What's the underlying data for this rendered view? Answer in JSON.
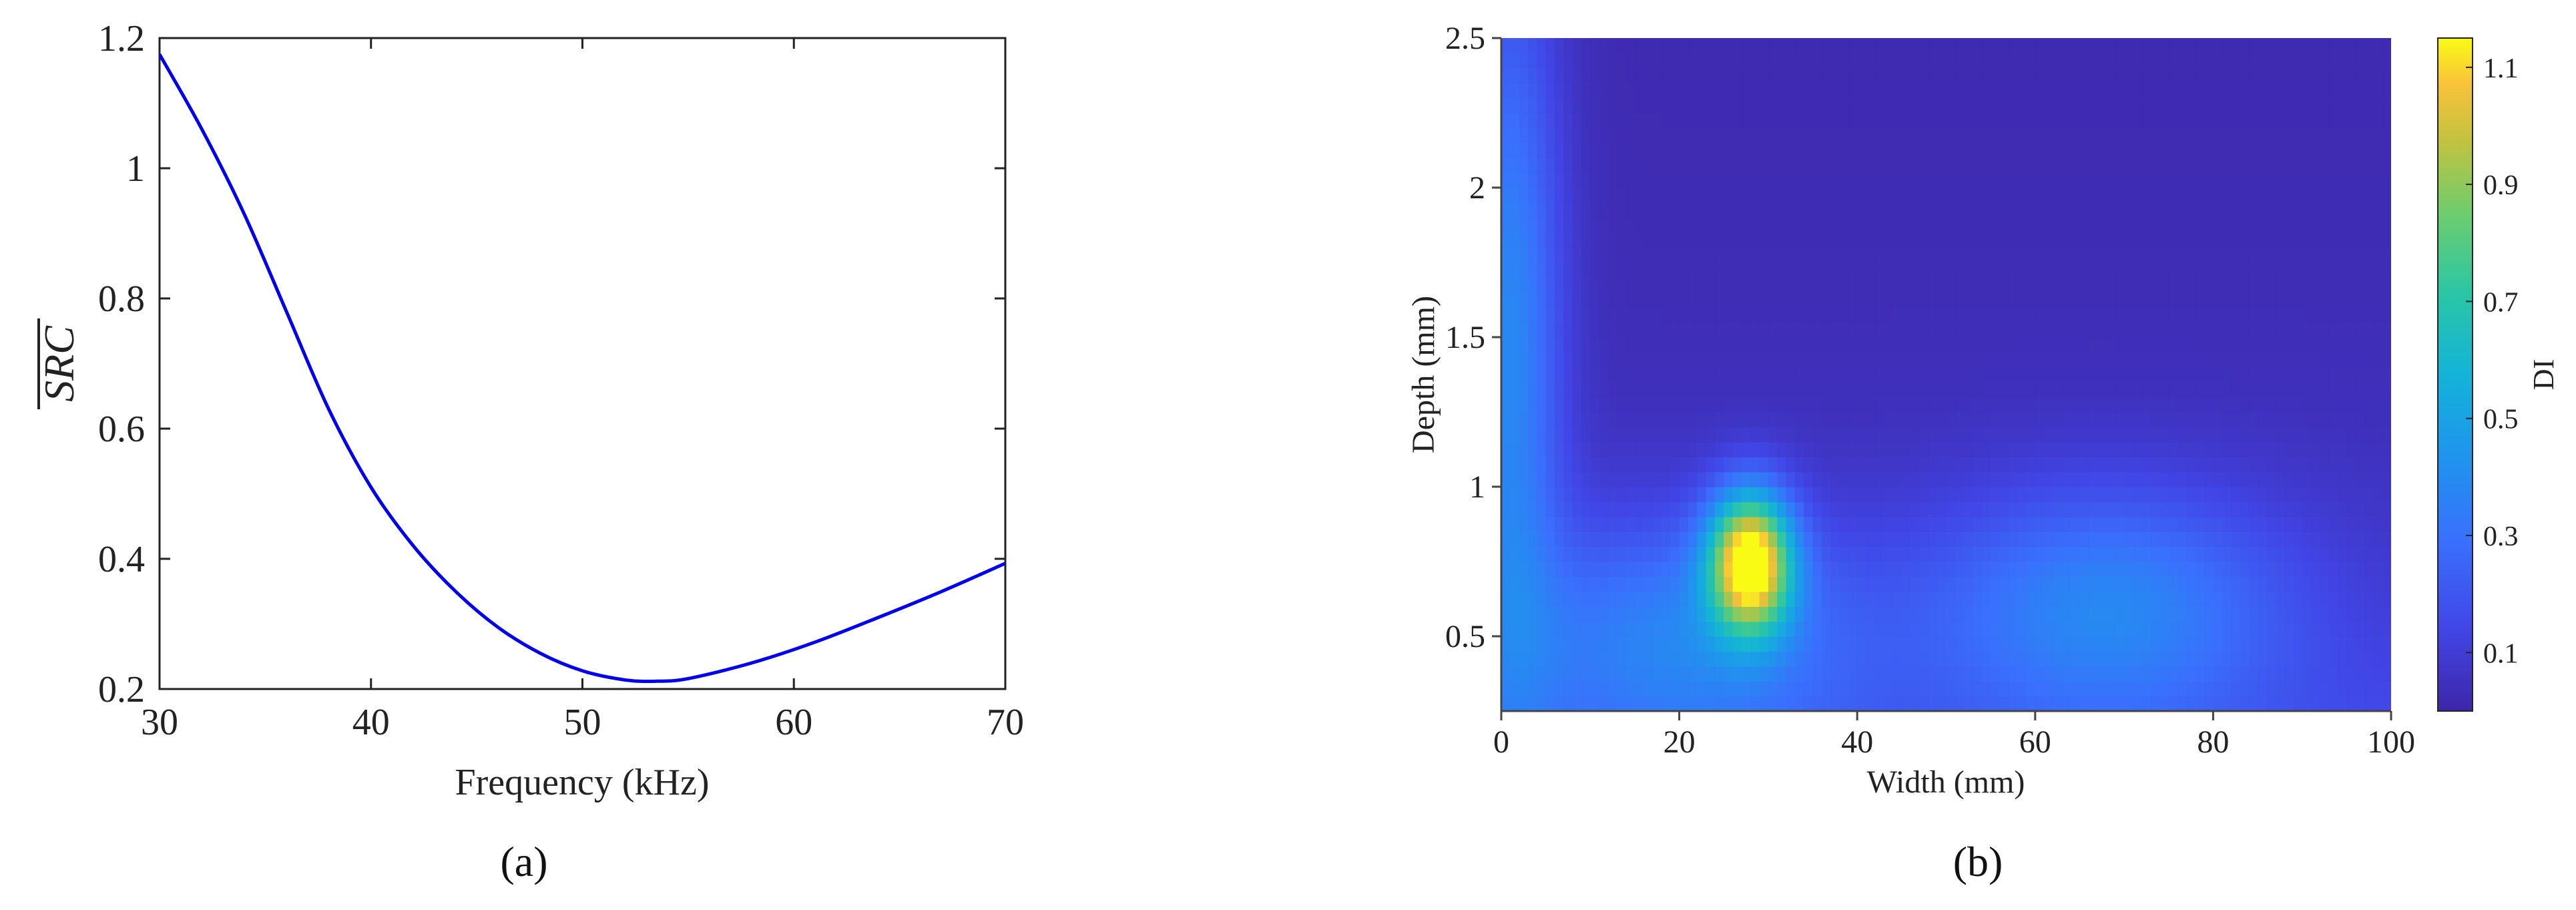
{
  "chart_data": [
    {
      "type": "line",
      "panel_label": "(a)",
      "xlabel": "Frequency (kHz)",
      "ylabel": "SRC",
      "xlim": [
        30,
        70
      ],
      "ylim": [
        0.2,
        1.2
      ],
      "xticks": [
        "30",
        "40",
        "50",
        "60",
        "70"
      ],
      "yticks": [
        "0.2",
        "0.4",
        "0.6",
        "0.8",
        "1",
        "1.2"
      ],
      "grid": false,
      "colors": {
        "line": "#0000ee"
      },
      "series": [
        {
          "x": [
            30,
            32,
            34,
            36,
            38,
            40,
            42,
            44,
            46,
            48,
            50,
            52,
            53.5,
            55,
            58,
            61,
            64,
            67,
            70
          ],
          "y": [
            1.175,
            1.06,
            0.93,
            0.78,
            0.63,
            0.51,
            0.42,
            0.35,
            0.295,
            0.255,
            0.228,
            0.214,
            0.212,
            0.216,
            0.24,
            0.272,
            0.31,
            0.35,
            0.393
          ]
        }
      ]
    },
    {
      "type": "heatmap",
      "panel_label": "(b)",
      "xlabel": "Width (mm)",
      "ylabel": "Depth (mm)",
      "colorbar_label": "DI",
      "xlim": [
        0,
        100
      ],
      "ylim": [
        0.25,
        2.5
      ],
      "xticks": [
        "0",
        "20",
        "40",
        "60",
        "80",
        "100"
      ],
      "yticks": [
        "0.5",
        "1",
        "1.5",
        "2",
        "2.5"
      ],
      "colorbar_ticks": [
        "0.1",
        "0.3",
        "0.5",
        "0.7",
        "0.9",
        "1.1"
      ],
      "colorbar_range": [
        0,
        1.15
      ],
      "colormap": "parula",
      "background_value": 0.02,
      "features": [
        {
          "kind": "peak",
          "x": 28,
          "y": 0.75,
          "value": 1.12
        },
        {
          "kind": "diffuse",
          "x": 20,
          "y": 0.5,
          "value": 0.28
        },
        {
          "kind": "diffuse",
          "x": 68,
          "y": 0.6,
          "value": 0.3
        },
        {
          "kind": "edge",
          "x": 1,
          "y": 1.5,
          "value": 0.35
        }
      ]
    }
  ]
}
